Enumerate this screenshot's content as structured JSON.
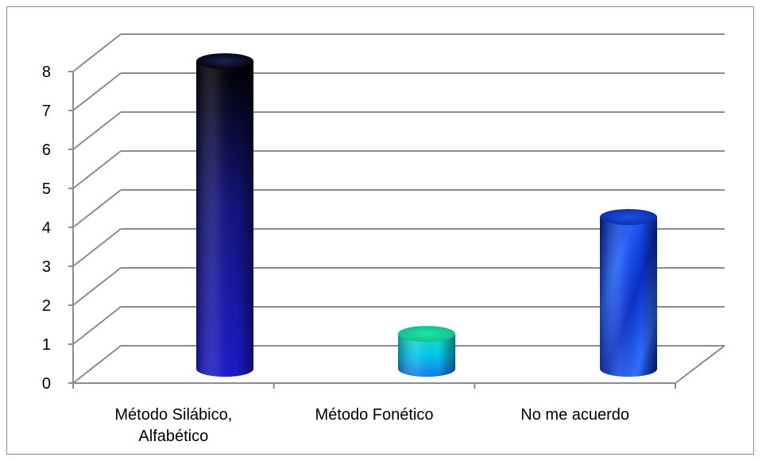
{
  "chart_data": {
    "type": "bar",
    "style": "3d-cylinder",
    "categories": [
      [
        "Método Silábico,",
        "Alfabético"
      ],
      [
        "Método Fonético"
      ],
      [
        "No me acuerdo"
      ]
    ],
    "values": [
      8,
      1,
      4
    ],
    "ylim": [
      0,
      8
    ],
    "yticks": [
      0,
      1,
      2,
      3,
      4,
      5,
      6,
      7,
      8
    ],
    "grid": true,
    "legend": "none",
    "colors": {
      "bar_1": [
        "#000000",
        "#14147a",
        "#1a1acc"
      ],
      "bar_2": [
        "#1fe0b8",
        "#00c8f0",
        "#1a78e8"
      ],
      "bar_3": [
        "#0a30c8",
        "#2060ff",
        "#0020a0"
      ],
      "grid": "#8c8c8c",
      "frame": "#8c8c8c"
    }
  }
}
